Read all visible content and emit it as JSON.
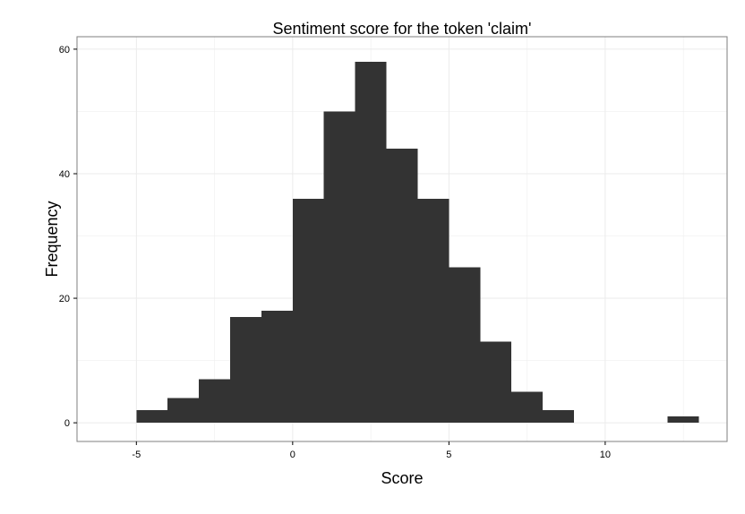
{
  "chart_data": {
    "type": "bar",
    "title": "Sentiment score for the token 'claim'",
    "xlabel": "Score",
    "ylabel": "Frequency",
    "xlim": [
      -6.9,
      13.9
    ],
    "ylim": [
      -3,
      62
    ],
    "xticks": [
      {
        "value": -5,
        "label": "-5"
      },
      {
        "value": 0,
        "label": "0"
      },
      {
        "value": 5,
        "label": "5"
      },
      {
        "value": 10,
        "label": "10"
      }
    ],
    "yticks": [
      {
        "value": 0,
        "label": "0"
      },
      {
        "value": 20,
        "label": "20"
      },
      {
        "value": 40,
        "label": "40"
      },
      {
        "value": 60,
        "label": "60"
      }
    ],
    "bin_width": 1,
    "bins": [
      {
        "x_start": -5,
        "x_end": -4,
        "value": 2
      },
      {
        "x_start": -4,
        "x_end": -3,
        "value": 4
      },
      {
        "x_start": -3,
        "x_end": -2,
        "value": 7
      },
      {
        "x_start": -2,
        "x_end": -1,
        "value": 17
      },
      {
        "x_start": -1,
        "x_end": 0,
        "value": 18
      },
      {
        "x_start": 0,
        "x_end": 1,
        "value": 36
      },
      {
        "x_start": 1,
        "x_end": 2,
        "value": 50
      },
      {
        "x_start": 2,
        "x_end": 3,
        "value": 58
      },
      {
        "x_start": 3,
        "x_end": 4,
        "value": 44
      },
      {
        "x_start": 4,
        "x_end": 5,
        "value": 36
      },
      {
        "x_start": 5,
        "x_end": 6,
        "value": 25
      },
      {
        "x_start": 6,
        "x_end": 7,
        "value": 13
      },
      {
        "x_start": 7,
        "x_end": 8,
        "value": 5
      },
      {
        "x_start": 8,
        "x_end": 9,
        "value": 2
      },
      {
        "x_start": 9,
        "x_end": 10,
        "value": 0
      },
      {
        "x_start": 10,
        "x_end": 11,
        "value": 0
      },
      {
        "x_start": 11,
        "x_end": 12,
        "value": 0
      },
      {
        "x_start": 12,
        "x_end": 13,
        "value": 1
      }
    ],
    "grid": true,
    "bar_color": "#333333",
    "grid_color": "#ebebeb",
    "panel_border_color": "#7f7f7f"
  }
}
